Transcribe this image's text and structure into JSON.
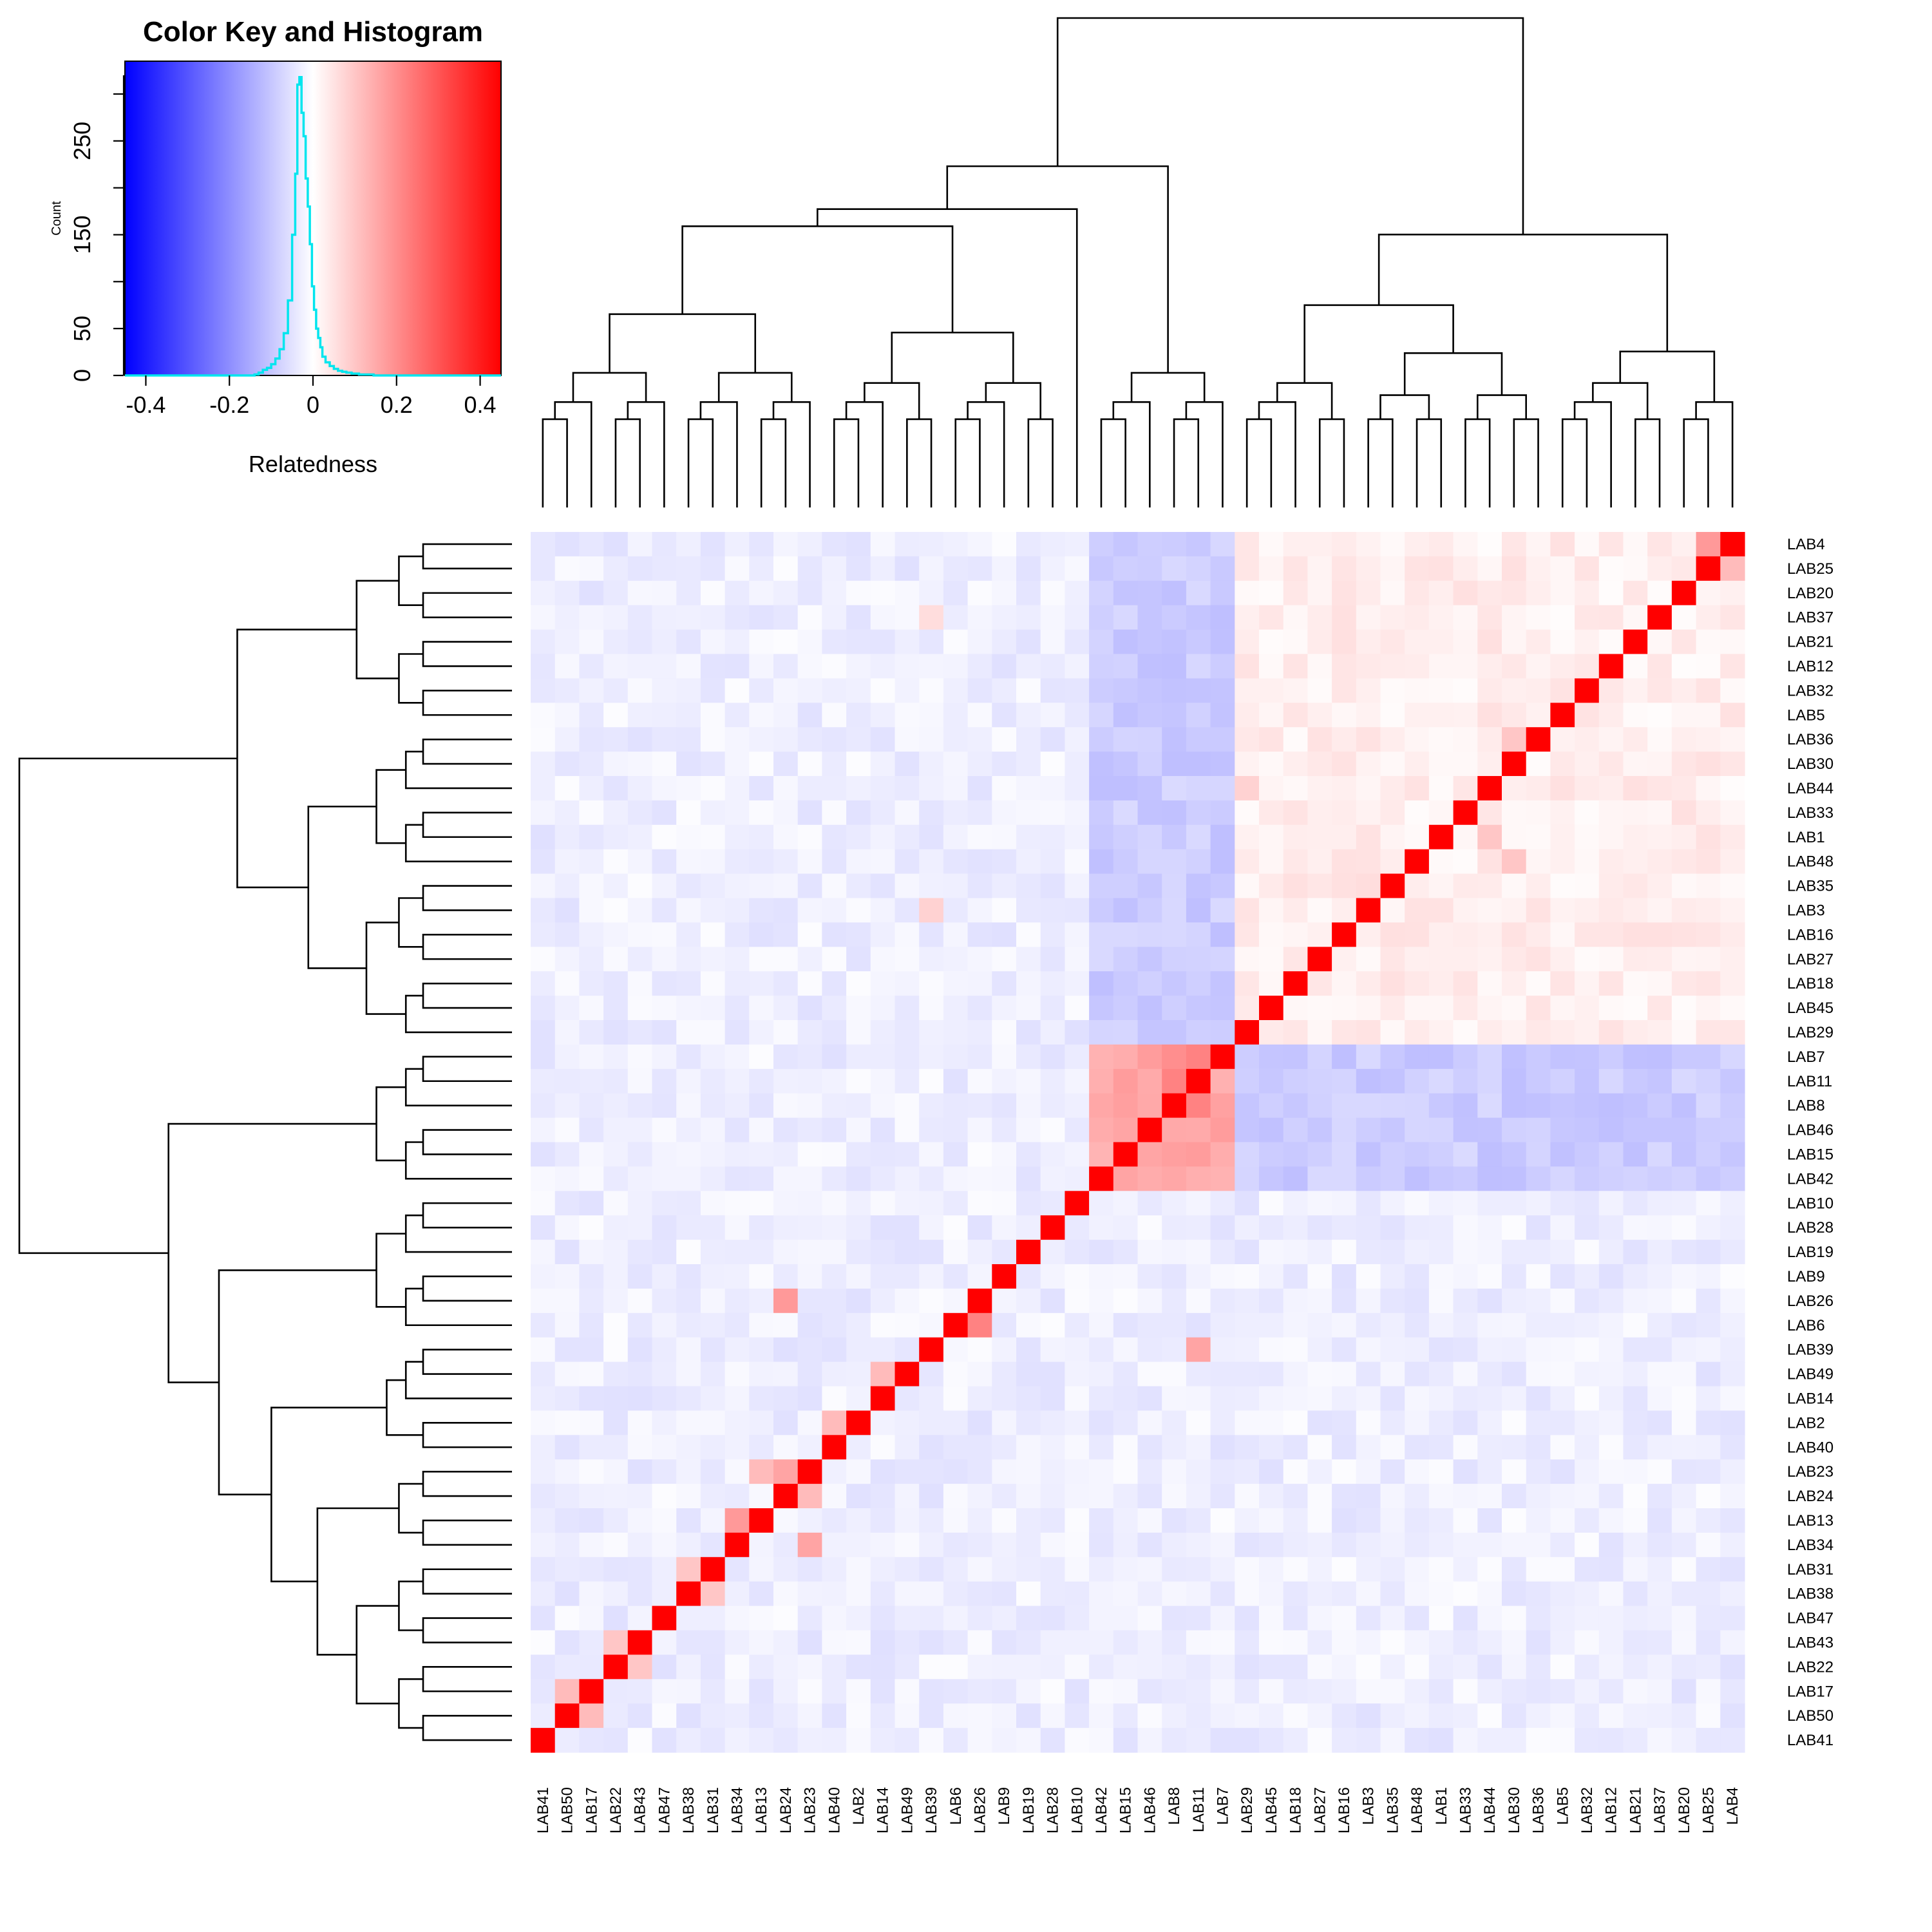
{
  "chart_data": {
    "type": "heatmap",
    "title": "",
    "row_labels": [
      "LAB4",
      "LAB25",
      "LAB20",
      "LAB37",
      "LAB21",
      "LAB12",
      "LAB32",
      "LAB5",
      "LAB36",
      "LAB30",
      "LAB44",
      "LAB33",
      "LAB1",
      "LAB48",
      "LAB35",
      "LAB3",
      "LAB16",
      "LAB27",
      "LAB18",
      "LAB45",
      "LAB29",
      "LAB7",
      "LAB11",
      "LAB8",
      "LAB46",
      "LAB15",
      "LAB42",
      "LAB10",
      "LAB28",
      "LAB19",
      "LAB9",
      "LAB26",
      "LAB6",
      "LAB39",
      "LAB49",
      "LAB14",
      "LAB2",
      "LAB40",
      "LAB23",
      "LAB24",
      "LAB13",
      "LAB34",
      "LAB31",
      "LAB38",
      "LAB47",
      "LAB43",
      "LAB22",
      "LAB17",
      "LAB50",
      "LAB41"
    ],
    "col_labels": [
      "LAB41",
      "LAB50",
      "LAB17",
      "LAB22",
      "LAB43",
      "LAB47",
      "LAB38",
      "LAB31",
      "LAB34",
      "LAB13",
      "LAB24",
      "LAB23",
      "LAB40",
      "LAB2",
      "LAB14",
      "LAB49",
      "LAB39",
      "LAB6",
      "LAB26",
      "LAB9",
      "LAB19",
      "LAB28",
      "LAB10",
      "LAB42",
      "LAB15",
      "LAB46",
      "LAB8",
      "LAB11",
      "LAB7",
      "LAB29",
      "LAB45",
      "LAB18",
      "LAB27",
      "LAB16",
      "LAB3",
      "LAB35",
      "LAB48",
      "LAB1",
      "LAB33",
      "LAB44",
      "LAB30",
      "LAB36",
      "LAB5",
      "LAB32",
      "LAB12",
      "LAB21",
      "LAB37",
      "LAB20",
      "LAB25",
      "LAB4"
    ],
    "cluster_a": [
      "LAB4",
      "LAB25",
      "LAB20",
      "LAB37",
      "LAB21",
      "LAB12",
      "LAB32",
      "LAB5",
      "LAB36",
      "LAB30",
      "LAB44",
      "LAB33",
      "LAB1",
      "LAB48",
      "LAB35",
      "LAB3",
      "LAB16",
      "LAB27",
      "LAB18",
      "LAB45",
      "LAB29"
    ],
    "cluster_b": [
      "LAB7",
      "LAB11",
      "LAB8",
      "LAB46",
      "LAB15",
      "LAB42"
    ],
    "diagonal": 0.45,
    "within_a": 0.03,
    "within_b": 0.15,
    "between_a_b": -0.09,
    "background": -0.03,
    "highlights": [
      {
        "r": "LAB4",
        "c": "LAB25",
        "v": 0.18
      },
      {
        "r": "LAB25",
        "c": "LAB4",
        "v": 0.12
      },
      {
        "r": "LAB25",
        "c": "LAB20",
        "v": 0.04
      },
      {
        "r": "LAB36",
        "c": "LAB30",
        "v": 0.1
      },
      {
        "r": "LAB7",
        "c": "LAB11",
        "v": 0.22
      },
      {
        "r": "LAB7",
        "c": "LAB8",
        "v": 0.2
      },
      {
        "r": "LAB11",
        "c": "LAB8",
        "v": 0.22
      },
      {
        "r": "LAB8",
        "c": "LAB11",
        "v": 0.22
      },
      {
        "r": "LAB42",
        "c": "LAB15",
        "v": 0.16
      },
      {
        "r": "LAB26",
        "c": "LAB24",
        "v": 0.18
      },
      {
        "r": "LAB23",
        "c": "LAB24",
        "v": 0.16
      },
      {
        "r": "LAB23",
        "c": "LAB13",
        "v": 0.12
      },
      {
        "r": "LAB24",
        "c": "LAB23",
        "v": 0.12
      },
      {
        "r": "LAB13",
        "c": "LAB34",
        "v": 0.18
      },
      {
        "r": "LAB34",
        "c": "LAB23",
        "v": 0.16
      },
      {
        "r": "LAB31",
        "c": "LAB38",
        "v": 0.1
      },
      {
        "r": "LAB38",
        "c": "LAB31",
        "v": 0.1
      },
      {
        "r": "LAB43",
        "c": "LAB22",
        "v": 0.1
      },
      {
        "r": "LAB22",
        "c": "LAB43",
        "v": 0.1
      },
      {
        "r": "LAB17",
        "c": "LAB50",
        "v": 0.12
      },
      {
        "r": "LAB50",
        "c": "LAB17",
        "v": 0.12
      },
      {
        "r": "LAB6",
        "c": "LAB26",
        "v": 0.22
      },
      {
        "r": "LAB39",
        "c": "LAB11",
        "v": 0.16
      },
      {
        "r": "LAB49",
        "c": "LAB14",
        "v": 0.12
      },
      {
        "r": "LAB2",
        "c": "LAB40",
        "v": 0.12
      },
      {
        "r": "LAB3",
        "c": "LAB39",
        "v": 0.08
      },
      {
        "r": "LAB37",
        "c": "LAB39",
        "v": 0.06
      },
      {
        "r": "LAB44",
        "c": "LAB29",
        "v": 0.08
      },
      {
        "r": "LAB48",
        "c": "LAB30",
        "v": 0.1
      },
      {
        "r": "LAB1",
        "c": "LAB44",
        "v": 0.1
      },
      {
        "r": "LAB35",
        "c": "LAB3",
        "v": 0.06
      }
    ],
    "color_key": {
      "title": "Color Key and Histogram",
      "xlabel": "Relatedness",
      "ylabel": "Count",
      "xticks": [
        "-0.4",
        "-0.2",
        "0",
        "0.2",
        "0.4"
      ],
      "yticks": [
        "0",
        "50",
        "150",
        "250"
      ],
      "xlim": [
        -0.45,
        0.45
      ],
      "ylim": [
        0,
        335
      ],
      "colors": {
        "low": "#0000ff",
        "mid": "#ffffff",
        "high": "#ff0000",
        "histogram": "#00e5ee"
      },
      "histogram": {
        "bin_centers": [
          -0.135,
          -0.125,
          -0.115,
          -0.105,
          -0.095,
          -0.085,
          -0.075,
          -0.065,
          -0.055,
          -0.045,
          -0.04,
          -0.035,
          -0.03,
          -0.025,
          -0.02,
          -0.015,
          -0.01,
          -0.005,
          0.0,
          0.005,
          0.01,
          0.015,
          0.02,
          0.025,
          0.035,
          0.045,
          0.055,
          0.065,
          0.075,
          0.085,
          0.1,
          0.12,
          0.14
        ],
        "counts": [
          1,
          3,
          6,
          8,
          12,
          18,
          28,
          45,
          80,
          150,
          215,
          310,
          318,
          280,
          255,
          210,
          180,
          140,
          95,
          70,
          50,
          40,
          30,
          20,
          14,
          10,
          7,
          5,
          4,
          3,
          2,
          1,
          1
        ]
      }
    }
  }
}
